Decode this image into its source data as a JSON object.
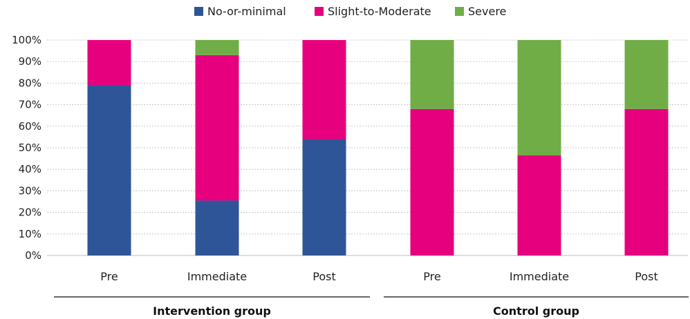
{
  "chart_data": {
    "type": "bar",
    "stacked": true,
    "categories": [
      "Pre",
      "Immediate",
      "Post",
      "Pre",
      "Immediate",
      "Post"
    ],
    "groups": [
      {
        "label": "Intervention group",
        "categories": [
          0,
          1,
          2
        ]
      },
      {
        "label": "Control group",
        "categories": [
          3,
          4,
          5
        ]
      }
    ],
    "series": [
      {
        "name": "No-or-minimal",
        "color": "#2E5597",
        "values": [
          79,
          25.5,
          54,
          0,
          0,
          0
        ]
      },
      {
        "name": "Slight-to-Moderate",
        "color": "#E6007E",
        "values": [
          21,
          67.5,
          46,
          68,
          46.5,
          68
        ]
      },
      {
        "name": "Severe",
        "color": "#70AD47",
        "values": [
          0,
          7,
          0,
          32,
          53.5,
          32
        ]
      }
    ],
    "y_ticks": [
      "0%",
      "10%",
      "20%",
      "30%",
      "40%",
      "50%",
      "60%",
      "70%",
      "80%",
      "90%",
      "100%"
    ],
    "ylim": [
      0,
      100
    ],
    "grid": true,
    "legend_position": "top-center",
    "title": "",
    "xlabel": "",
    "ylabel": ""
  }
}
